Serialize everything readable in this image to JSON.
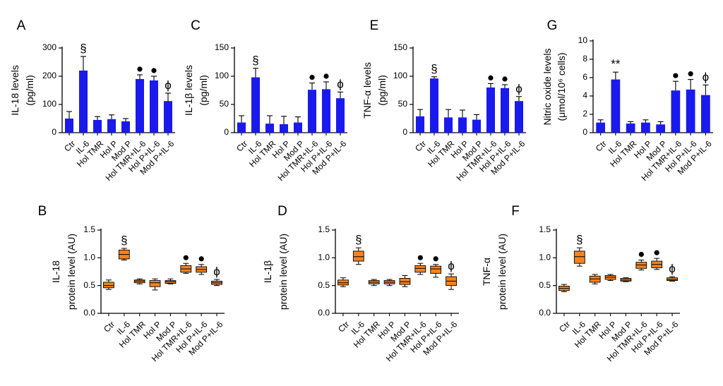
{
  "figure": {
    "colors": {
      "bar": "#1a1aee",
      "box": "#f5831f",
      "axis": "#000000"
    }
  },
  "chart_data": [
    {
      "type": "bar",
      "panel_letter": "A",
      "ylabel_lines": [
        "IL-18 levels",
        "(pg/ml)"
      ],
      "ylim": [
        0,
        300
      ],
      "yticks": [
        "0",
        "100",
        "200",
        "300"
      ],
      "categories": [
        "Ctr",
        "IL-6",
        "Hol TMR",
        "Hol P",
        "Mod P",
        "Hol TMR+IL-6",
        "Hol P+IL-6",
        "Mod P+IL-6"
      ],
      "values": [
        50,
        220,
        45,
        48,
        40,
        190,
        185,
        112
      ],
      "errors": [
        25,
        50,
        12,
        15,
        10,
        15,
        15,
        28
      ],
      "annotations": [
        "",
        "§",
        "",
        "",
        "",
        "●",
        "●",
        "ϕ"
      ]
    },
    {
      "type": "bar",
      "panel_letter": "C",
      "ylabel_lines": [
        "IL-1β levels",
        "(pg/ml)"
      ],
      "ylim": [
        0,
        150
      ],
      "yticks": [
        "0",
        "50",
        "100",
        "150"
      ],
      "categories": [
        "Ctr",
        "IL-6",
        "Hol TMR",
        "Hol P",
        "Mod P",
        "Hol TMR+IL-6",
        "Hol P+IL-6",
        "Mod P+IL-6"
      ],
      "values": [
        18,
        98,
        16,
        15,
        18,
        76,
        77,
        61
      ],
      "errors": [
        12,
        16,
        14,
        14,
        10,
        12,
        13,
        11
      ],
      "annotations": [
        "",
        "§",
        "",
        "",
        "",
        "●",
        "●",
        "ϕ"
      ]
    },
    {
      "type": "bar",
      "panel_letter": "E",
      "ylabel_lines": [
        "TNF-α levels",
        "(pg/ml)"
      ],
      "ylim": [
        0,
        150
      ],
      "yticks": [
        "0",
        "50",
        "100",
        "150"
      ],
      "categories": [
        "Ctr",
        "IL-6",
        "Hol TMR",
        "Hol P",
        "Mod P",
        "Hol TMR+IL-6",
        "Hol P+IL-6",
        "Mod P+IL-6"
      ],
      "values": [
        29,
        96,
        27,
        27,
        23,
        80,
        79,
        56
      ],
      "errors": [
        12,
        3,
        14,
        13,
        9,
        7,
        6,
        8
      ],
      "annotations": [
        "",
        "§",
        "",
        "",
        "",
        "●",
        "●",
        "ϕ"
      ]
    },
    {
      "type": "bar",
      "panel_letter": "G",
      "ylabel_lines": [
        "Nitric oxide levels",
        "(μmol/10⁶ cells)"
      ],
      "ylim": [
        0,
        10
      ],
      "yticks": [
        "0",
        "2",
        "4",
        "6",
        "8",
        "10"
      ],
      "categories": [
        "Ctr",
        "IL-6",
        "Hol TMR",
        "Hol P",
        "Mod P",
        "Hol TMR+IL-6",
        "Hol P+IL-6",
        "Mod P+IL-6"
      ],
      "values": [
        1.1,
        5.8,
        1.0,
        1.1,
        0.9,
        4.6,
        4.7,
        4.1
      ],
      "errors": [
        0.3,
        0.8,
        0.2,
        0.3,
        0.3,
        1.0,
        1.1,
        1.1
      ],
      "annotations": [
        "",
        "**",
        "",
        "",
        "",
        "●",
        "●",
        "ϕ"
      ]
    },
    {
      "type": "box",
      "panel_letter": "B",
      "ylabel_lines": [
        "IL-18",
        "protein level (AU)"
      ],
      "ylim": [
        0,
        1.5
      ],
      "yticks": [
        "0.0",
        "0.5",
        "1.0",
        "1.5"
      ],
      "categories": [
        "Ctr",
        "IL-6",
        "Hol TMR",
        "Hol P",
        "Mod P",
        "Hol TMR+IL-6",
        "Hol P+IL-6",
        "Mod P+IL-6"
      ],
      "boxes": [
        {
          "min": 0.43,
          "q1": 0.46,
          "median": 0.5,
          "q3": 0.56,
          "max": 0.6
        },
        {
          "min": 0.96,
          "q1": 0.98,
          "median": 1.06,
          "q3": 1.14,
          "max": 1.17
        },
        {
          "min": 0.53,
          "q1": 0.55,
          "median": 0.58,
          "q3": 0.6,
          "max": 0.62
        },
        {
          "min": 0.42,
          "q1": 0.48,
          "median": 0.55,
          "q3": 0.59,
          "max": 0.62
        },
        {
          "min": 0.53,
          "q1": 0.54,
          "median": 0.57,
          "q3": 0.59,
          "max": 0.62
        },
        {
          "min": 0.72,
          "q1": 0.74,
          "median": 0.8,
          "q3": 0.86,
          "max": 0.9
        },
        {
          "min": 0.7,
          "q1": 0.74,
          "median": 0.79,
          "q3": 0.84,
          "max": 0.88
        },
        {
          "min": 0.5,
          "q1": 0.52,
          "median": 0.55,
          "q3": 0.58,
          "max": 0.61
        }
      ],
      "annotations": [
        "",
        "§",
        "",
        "",
        "",
        "●",
        "●",
        "ϕ"
      ]
    },
    {
      "type": "box",
      "panel_letter": "D",
      "ylabel_lines": [
        "IL-1β",
        "protein level (AU)"
      ],
      "ylim": [
        0,
        1.5
      ],
      "yticks": [
        "0.0",
        "0.5",
        "1.0",
        "1.5"
      ],
      "categories": [
        "Ctr",
        "IL-6",
        "Hol TMR",
        "Hol P",
        "Mod P",
        "Hol TMR+IL-6",
        "Hol P+IL-6",
        "Mod P+IL-6"
      ],
      "boxes": [
        {
          "min": 0.48,
          "q1": 0.51,
          "median": 0.55,
          "q3": 0.6,
          "max": 0.64
        },
        {
          "min": 0.88,
          "q1": 0.94,
          "median": 1.02,
          "q3": 1.12,
          "max": 1.18
        },
        {
          "min": 0.5,
          "q1": 0.53,
          "median": 0.56,
          "q3": 0.59,
          "max": 0.61
        },
        {
          "min": 0.5,
          "q1": 0.53,
          "median": 0.56,
          "q3": 0.59,
          "max": 0.61
        },
        {
          "min": 0.48,
          "q1": 0.52,
          "median": 0.57,
          "q3": 0.63,
          "max": 0.68
        },
        {
          "min": 0.7,
          "q1": 0.74,
          "median": 0.81,
          "q3": 0.86,
          "max": 0.9
        },
        {
          "min": 0.65,
          "q1": 0.72,
          "median": 0.8,
          "q3": 0.85,
          "max": 0.88
        },
        {
          "min": 0.43,
          "q1": 0.5,
          "median": 0.58,
          "q3": 0.66,
          "max": 0.71
        }
      ],
      "annotations": [
        "",
        "§",
        "",
        "",
        "",
        "●",
        "●",
        "ϕ"
      ]
    },
    {
      "type": "box",
      "panel_letter": "F",
      "ylabel_lines": [
        "TNF-α",
        "protein level (AU)"
      ],
      "ylim": [
        0,
        1.5
      ],
      "yticks": [
        "0.0",
        "0.5",
        "1.0",
        "1.5"
      ],
      "categories": [
        "Ctr",
        "IL-6",
        "Hol TMR",
        "Hol P",
        "Mod P",
        "Hol TMR+IL-6",
        "Hol P+IL-6",
        "Mod P+IL-6"
      ],
      "boxes": [
        {
          "min": 0.39,
          "q1": 0.41,
          "median": 0.45,
          "q3": 0.49,
          "max": 0.52
        },
        {
          "min": 0.85,
          "q1": 0.9,
          "median": 1.02,
          "q3": 1.12,
          "max": 1.18
        },
        {
          "min": 0.53,
          "q1": 0.56,
          "median": 0.62,
          "q3": 0.67,
          "max": 0.7
        },
        {
          "min": 0.59,
          "q1": 0.61,
          "median": 0.65,
          "q3": 0.68,
          "max": 0.7
        },
        {
          "min": 0.57,
          "q1": 0.58,
          "median": 0.6,
          "q3": 0.63,
          "max": 0.64
        },
        {
          "min": 0.78,
          "q1": 0.81,
          "median": 0.87,
          "q3": 0.92,
          "max": 0.96
        },
        {
          "min": 0.79,
          "q1": 0.82,
          "median": 0.88,
          "q3": 0.94,
          "max": 0.99
        },
        {
          "min": 0.58,
          "q1": 0.59,
          "median": 0.61,
          "q3": 0.64,
          "max": 0.66
        }
      ],
      "annotations": [
        "",
        "§",
        "",
        "",
        "",
        "●",
        "●",
        "ϕ"
      ]
    }
  ]
}
